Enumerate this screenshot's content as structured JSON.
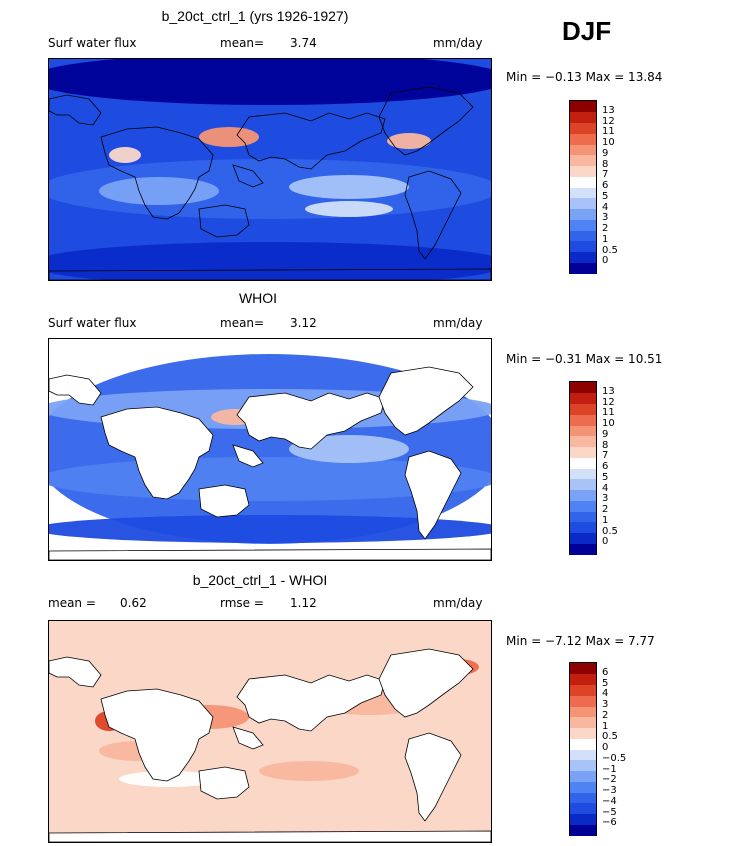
{
  "season": "DJF",
  "units": "mm/day",
  "panels": [
    {
      "title": "b_20ct_ctrl_1 (yrs 1926-1927)",
      "left_label": "Surf water flux",
      "stat_label": "mean=",
      "stat_value": "3.74",
      "units": "mm/day",
      "minmax": "Min =   −0.13  Max =   13.84",
      "kind": "model"
    },
    {
      "title": "WHOI",
      "left_label": "Surf water flux",
      "stat_label": "mean=",
      "stat_value": "3.12",
      "units": "mm/day",
      "minmax": "Min =   −0.31  Max =   10.51",
      "kind": "obs"
    },
    {
      "title": "b_20ct_ctrl_1 - WHOI",
      "left_label": "mean =",
      "left_value": "0.62",
      "stat_label": "rmse =",
      "stat_value": "1.12",
      "units": "mm/day",
      "minmax": "Min =   −7.12  Max =    7.77",
      "kind": "diff"
    }
  ],
  "chart_data": [
    {
      "type": "heatmap",
      "title": "b_20ct_ctrl_1 (yrs 1926-1927)",
      "variable": "Surf water flux",
      "units": "mm/day",
      "mean": 3.74,
      "min": -0.13,
      "max": 13.84,
      "colorbar_levels": [
        "0",
        "0.5",
        "1",
        "2",
        "3",
        "4",
        "5",
        "6",
        "7",
        "8",
        "9",
        "10",
        "11",
        "12",
        "13"
      ],
      "colors": [
        "#000096",
        "#0a2ac8",
        "#1e4be0",
        "#3264ea",
        "#4f82f2",
        "#7aa2f7",
        "#a7c3f8",
        "#d2e0fa",
        "#ffffff",
        "#fbd7c8",
        "#f9b79f",
        "#f59475",
        "#ee6b4d",
        "#dd4326",
        "#c31f10",
        "#8c0000"
      ]
    },
    {
      "type": "heatmap",
      "title": "WHOI",
      "variable": "Surf water flux",
      "units": "mm/day",
      "mean": 3.12,
      "min": -0.31,
      "max": 10.51,
      "colorbar_levels": [
        "0",
        "0.5",
        "1",
        "2",
        "3",
        "4",
        "5",
        "6",
        "7",
        "8",
        "9",
        "10",
        "11",
        "12",
        "13"
      ],
      "colors": [
        "#000096",
        "#0a2ac8",
        "#1e4be0",
        "#3264ea",
        "#4f82f2",
        "#7aa2f7",
        "#a7c3f8",
        "#d2e0fa",
        "#ffffff",
        "#fbd7c8",
        "#f9b79f",
        "#f59475",
        "#ee6b4d",
        "#dd4326",
        "#c31f10",
        "#8c0000"
      ]
    },
    {
      "type": "heatmap",
      "title": "b_20ct_ctrl_1 - WHOI",
      "units": "mm/day",
      "mean": 0.62,
      "rmse": 1.12,
      "min": -7.12,
      "max": 7.77,
      "colorbar_levels": [
        "−6",
        "−5",
        "−4",
        "−3",
        "−2",
        "−1",
        "−0.5",
        "0",
        "0.5",
        "1",
        "2",
        "3",
        "4",
        "5",
        "6"
      ],
      "colors": [
        "#000096",
        "#0a2ac8",
        "#1e4be0",
        "#3264ea",
        "#4f82f2",
        "#7aa2f7",
        "#a7c3f8",
        "#d2e0fa",
        "#ffffff",
        "#fbd7c8",
        "#f9b79f",
        "#f59475",
        "#ee6b4d",
        "#dd4326",
        "#c31f10",
        "#8c0000"
      ]
    }
  ]
}
